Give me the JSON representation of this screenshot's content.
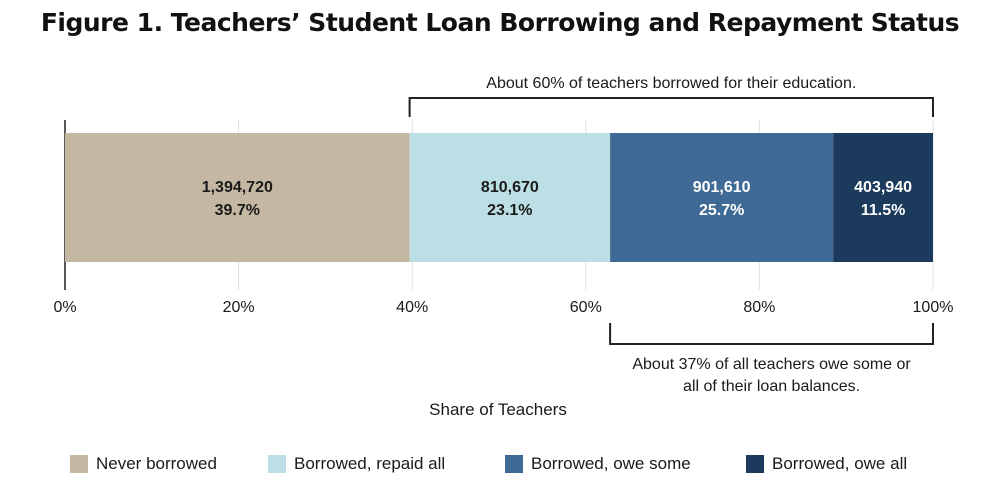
{
  "chart_data": {
    "type": "bar",
    "orientation": "horizontal",
    "stacked": true,
    "title": "Figure 1. Teachers’ Student Loan Borrowing and Repayment Status",
    "xlabel": "Share of Teachers",
    "ylabel": "",
    "xlim": [
      0,
      100
    ],
    "ticks": [
      "0%",
      "20%",
      "40%",
      "60%",
      "80%",
      "100%"
    ],
    "tick_values": [
      0,
      20,
      40,
      60,
      80,
      100
    ],
    "grid": true,
    "legend_position": "bottom",
    "series": [
      {
        "name": "Never borrowed",
        "value": 39.7,
        "count_label": "1,394,720",
        "pct_label": "39.7%",
        "color": "#c4b8a2",
        "text_color": "#1a1a1a"
      },
      {
        "name": "Borrowed, repaid all",
        "value": 23.1,
        "count_label": "810,670",
        "pct_label": "23.1%",
        "color": "#bcdfe6",
        "text_color": "#1a1a1a"
      },
      {
        "name": "Borrowed, owe some",
        "value": 25.7,
        "count_label": "901,610",
        "pct_label": "25.7%",
        "color": "#3e6a95",
        "text_color": "#ffffff"
      },
      {
        "name": "Borrowed, owe all",
        "value": 11.5,
        "count_label": "403,940",
        "pct_label": "11.5%",
        "color": "#1c3a5c",
        "text_color": "#ffffff"
      }
    ],
    "annotations": [
      {
        "text_lines": [
          "About 60% of teachers borrowed for their education."
        ],
        "from": 39.7,
        "to": 100,
        "placement": "above"
      },
      {
        "text_lines": [
          "About 37% of all teachers owe some or",
          "all of their loan balances."
        ],
        "from": 62.8,
        "to": 100,
        "placement": "below"
      }
    ]
  }
}
